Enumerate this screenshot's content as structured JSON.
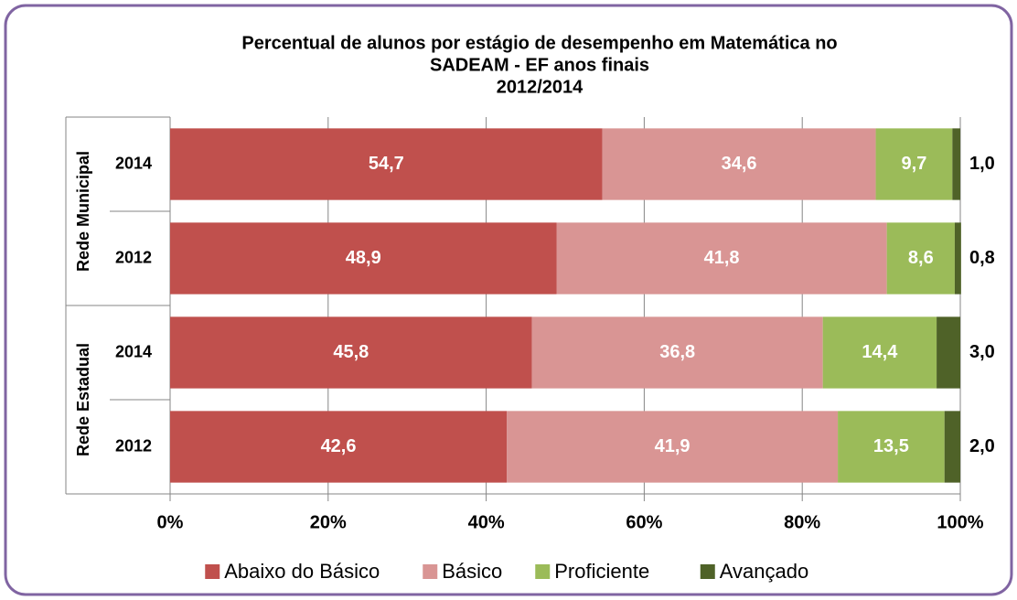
{
  "chart_data": {
    "type": "stacked-bar-horizontal",
    "title": [
      "Percentual de alunos por estágio de desempenho em Matemática no",
      "SADEAM - EF anos finais",
      "2012/2014"
    ],
    "groups": [
      {
        "name": "Rede Municipal",
        "categories": [
          "2014",
          "2012"
        ]
      },
      {
        "name": "Rede Estadual",
        "categories": [
          "2014",
          "2012"
        ]
      }
    ],
    "series": [
      {
        "name": "Abaixo do Básico",
        "color": "#c0504d",
        "values": [
          54.7,
          48.9,
          45.8,
          42.6
        ],
        "value_labels": [
          "54,7",
          "48,9",
          "45,8",
          "42,6"
        ]
      },
      {
        "name": "Básico",
        "color": "#d99594",
        "values": [
          34.6,
          41.8,
          36.8,
          41.9
        ],
        "value_labels": [
          "34,6",
          "41,8",
          "36,8",
          "41,9"
        ]
      },
      {
        "name": "Proficiente",
        "color": "#9bbb59",
        "values": [
          9.7,
          8.6,
          14.4,
          13.5
        ],
        "value_labels": [
          "9,7",
          "8,6",
          "14,4",
          "13,5"
        ]
      },
      {
        "name": "Avançado",
        "color": "#4f6228",
        "values": [
          1.0,
          0.8,
          3.0,
          2.0
        ],
        "value_labels": [
          "1,0",
          "0,8",
          "3,0",
          "2,0"
        ]
      }
    ],
    "xlim": [
      0,
      100
    ],
    "xticks": [
      {
        "value": 0,
        "label": "0%"
      },
      {
        "value": 20,
        "label": "20%"
      },
      {
        "value": 40,
        "label": "40%"
      },
      {
        "value": 60,
        "label": "60%"
      },
      {
        "value": 80,
        "label": "80%"
      },
      {
        "value": 100,
        "label": "100%"
      }
    ],
    "grid": true,
    "legend": "bottom"
  }
}
